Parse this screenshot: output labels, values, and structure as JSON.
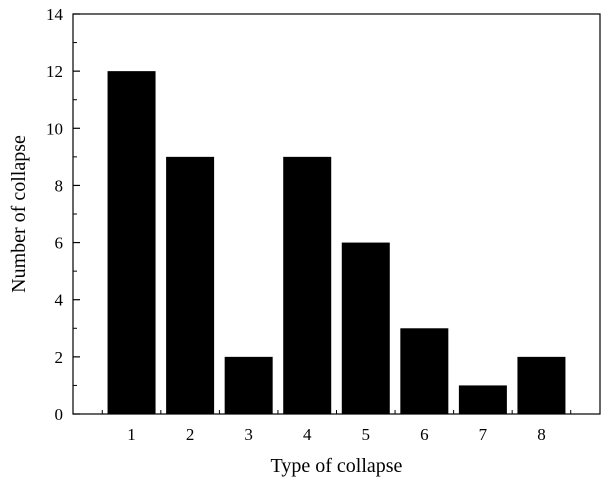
{
  "chart_data": {
    "type": "bar",
    "xlabel": "Type of collapse",
    "ylabel": "Number of collapse",
    "categories": [
      "1",
      "2",
      "3",
      "4",
      "5",
      "6",
      "7",
      "8"
    ],
    "values": [
      12,
      9,
      2,
      9,
      6,
      3,
      1,
      2
    ],
    "ylim": [
      0,
      14
    ],
    "yticks": [
      0,
      2,
      4,
      6,
      8,
      10,
      12,
      14
    ],
    "grid": false,
    "legend": "none",
    "bar_color": "#000000",
    "axis_color": "#000000"
  }
}
